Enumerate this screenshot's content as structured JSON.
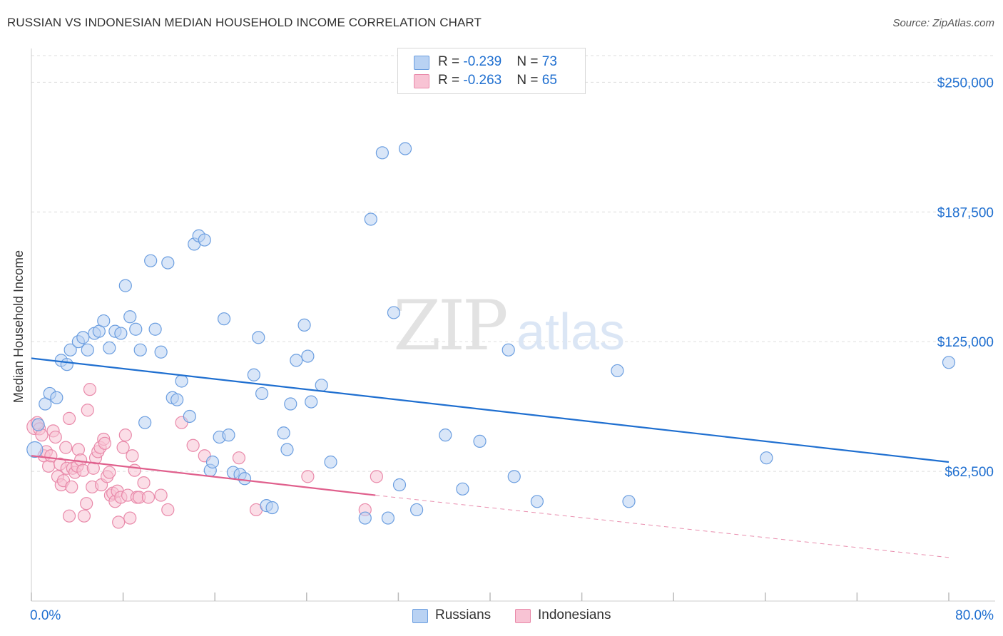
{
  "title": "RUSSIAN VS INDONESIAN MEDIAN HOUSEHOLD INCOME CORRELATION CHART",
  "source": "Source: ZipAtlas.com",
  "legend": [
    {
      "r_label": "R = ",
      "r_value": "-0.239",
      "n_label": "N = ",
      "n_value": "73"
    },
    {
      "r_label": "R = ",
      "r_value": "-0.263",
      "n_label": "N = ",
      "n_value": "65"
    }
  ],
  "watermark": {
    "zip": "ZIP",
    "atlas": "atlas"
  },
  "colors": {
    "russians_fill": "#b9d2f3",
    "russians_stroke": "#6b9ee0",
    "russians_line": "#1f6fd0",
    "indonesians_fill": "#f8c3d4",
    "indonesians_stroke": "#e98aaa",
    "indonesians_line": "#e0608d",
    "axis_label": "#1f6fd0",
    "grid": "#dddddd"
  },
  "chart_data": {
    "type": "scatter",
    "title": "RUSSIAN VS INDONESIAN MEDIAN HOUSEHOLD INCOME CORRELATION CHART",
    "xlabel": "",
    "ylabel": "Median Household Income",
    "xlim": [
      0,
      80
    ],
    "ylim": [
      0,
      262500
    ],
    "x_tick_labels": [
      "0.0%",
      "80.0%"
    ],
    "y_ticks": [
      62500,
      125000,
      187500,
      250000
    ],
    "y_tick_labels": [
      "$62,500",
      "$125,000",
      "$187,500",
      "$250,000"
    ],
    "grid": true,
    "legend_position": "top-center",
    "series": [
      {
        "name": "Russians",
        "r": -0.239,
        "n": 73,
        "trend": {
          "x": [
            0,
            80
          ],
          "y": [
            117000,
            67000
          ]
        },
        "points": [
          [
            0.3,
            73000
          ],
          [
            0.6,
            85000
          ],
          [
            1.2,
            95000
          ],
          [
            1.6,
            100000
          ],
          [
            2.2,
            98000
          ],
          [
            2.6,
            116000
          ],
          [
            3.1,
            114000
          ],
          [
            3.4,
            121000
          ],
          [
            4.1,
            125000
          ],
          [
            4.5,
            127000
          ],
          [
            4.9,
            121000
          ],
          [
            5.5,
            129000
          ],
          [
            5.9,
            130000
          ],
          [
            6.3,
            135000
          ],
          [
            6.8,
            122000
          ],
          [
            7.3,
            130000
          ],
          [
            7.8,
            129000
          ],
          [
            8.2,
            152000
          ],
          [
            8.6,
            137000
          ],
          [
            9.1,
            131000
          ],
          [
            9.5,
            121000
          ],
          [
            9.9,
            86000
          ],
          [
            10.4,
            164000
          ],
          [
            10.8,
            131000
          ],
          [
            11.3,
            120000
          ],
          [
            11.9,
            163000
          ],
          [
            12.3,
            98000
          ],
          [
            12.7,
            97000
          ],
          [
            13.1,
            106000
          ],
          [
            13.8,
            89000
          ],
          [
            14.2,
            172000
          ],
          [
            14.6,
            176000
          ],
          [
            15.1,
            174000
          ],
          [
            15.6,
            63000
          ],
          [
            15.8,
            67000
          ],
          [
            16.4,
            79000
          ],
          [
            16.8,
            136000
          ],
          [
            17.2,
            80000
          ],
          [
            17.6,
            62000
          ],
          [
            18.2,
            61000
          ],
          [
            18.6,
            59000
          ],
          [
            19.4,
            109000
          ],
          [
            19.8,
            127000
          ],
          [
            20.1,
            100000
          ],
          [
            20.5,
            46000
          ],
          [
            21.0,
            45000
          ],
          [
            22.0,
            81000
          ],
          [
            22.3,
            73000
          ],
          [
            22.6,
            95000
          ],
          [
            23.1,
            116000
          ],
          [
            23.8,
            133000
          ],
          [
            24.1,
            118000
          ],
          [
            24.4,
            96000
          ],
          [
            25.3,
            104000
          ],
          [
            26.1,
            67000
          ],
          [
            29.1,
            40000
          ],
          [
            29.6,
            184000
          ],
          [
            30.6,
            216000
          ],
          [
            31.1,
            40000
          ],
          [
            31.6,
            139000
          ],
          [
            32.1,
            56000
          ],
          [
            32.6,
            218000
          ],
          [
            33.6,
            44000
          ],
          [
            36.1,
            80000
          ],
          [
            37.6,
            54000
          ],
          [
            39.1,
            77000
          ],
          [
            41.6,
            121000
          ],
          [
            42.1,
            60000
          ],
          [
            44.1,
            48000
          ],
          [
            51.1,
            111000
          ],
          [
            52.1,
            48000
          ],
          [
            64.1,
            69000
          ],
          [
            80.0,
            115000
          ]
        ]
      },
      {
        "name": "Indonesians",
        "r": -0.263,
        "n": 65,
        "trend": {
          "x": [
            0,
            30
          ],
          "y": [
            70000,
            51000
          ]
        },
        "trend_extension": {
          "x": [
            30,
            80
          ],
          "y": [
            51000,
            21000
          ]
        },
        "points": [
          [
            0.3,
            84000
          ],
          [
            0.5,
            86000
          ],
          [
            0.7,
            83000
          ],
          [
            0.9,
            80000
          ],
          [
            1.1,
            70000
          ],
          [
            1.3,
            72000
          ],
          [
            1.5,
            65000
          ],
          [
            1.7,
            70000
          ],
          [
            1.9,
            82000
          ],
          [
            2.1,
            79000
          ],
          [
            2.3,
            60000
          ],
          [
            2.5,
            66000
          ],
          [
            2.6,
            56000
          ],
          [
            2.8,
            58000
          ],
          [
            3.0,
            74000
          ],
          [
            3.1,
            64000
          ],
          [
            3.3,
            88000
          ],
          [
            3.3,
            41000
          ],
          [
            3.5,
            55000
          ],
          [
            3.6,
            64000
          ],
          [
            3.8,
            62000
          ],
          [
            4.0,
            65000
          ],
          [
            4.1,
            73000
          ],
          [
            4.3,
            68000
          ],
          [
            4.5,
            63000
          ],
          [
            4.6,
            41000
          ],
          [
            4.8,
            47000
          ],
          [
            4.9,
            92000
          ],
          [
            5.1,
            102000
          ],
          [
            5.3,
            55000
          ],
          [
            5.4,
            64000
          ],
          [
            5.6,
            69000
          ],
          [
            5.8,
            72000
          ],
          [
            6.0,
            74000
          ],
          [
            6.1,
            56000
          ],
          [
            6.3,
            78000
          ],
          [
            6.4,
            76000
          ],
          [
            6.6,
            60000
          ],
          [
            6.8,
            62000
          ],
          [
            6.9,
            51000
          ],
          [
            7.1,
            52000
          ],
          [
            7.3,
            48000
          ],
          [
            7.5,
            53000
          ],
          [
            7.6,
            38000
          ],
          [
            7.8,
            50000
          ],
          [
            8.0,
            74000
          ],
          [
            8.2,
            80000
          ],
          [
            8.4,
            51000
          ],
          [
            8.6,
            40000
          ],
          [
            8.8,
            70000
          ],
          [
            9.0,
            63000
          ],
          [
            9.2,
            50000
          ],
          [
            9.4,
            50000
          ],
          [
            9.8,
            57000
          ],
          [
            10.2,
            50000
          ],
          [
            11.3,
            51000
          ],
          [
            11.9,
            44000
          ],
          [
            13.1,
            86000
          ],
          [
            14.1,
            75000
          ],
          [
            15.1,
            70000
          ],
          [
            18.1,
            69000
          ],
          [
            19.6,
            44000
          ],
          [
            24.1,
            60000
          ],
          [
            29.1,
            44000
          ],
          [
            30.1,
            60000
          ]
        ]
      }
    ]
  },
  "bottom_legend": [
    "Russians",
    "Indonesians"
  ]
}
